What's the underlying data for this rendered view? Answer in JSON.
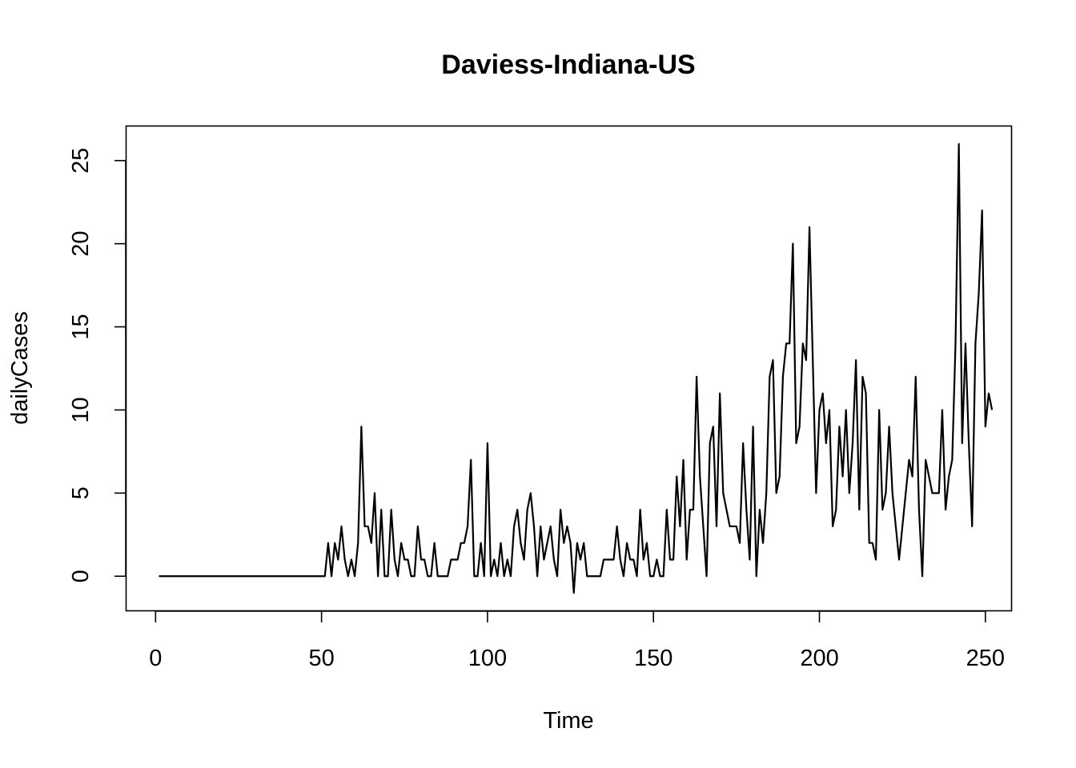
{
  "chart_data": {
    "type": "line",
    "title": "Daviess-Indiana-US",
    "xlabel": "Time",
    "ylabel": "dailyCases",
    "xlim": [
      1,
      248
    ],
    "ylim": [
      -1,
      26
    ],
    "x_ticks": [
      0,
      50,
      100,
      150,
      200,
      250
    ],
    "y_ticks": [
      0,
      5,
      10,
      15,
      20,
      25
    ],
    "grid": false,
    "legend": "none",
    "line_color": "#000000",
    "x_start": 1,
    "series": [
      {
        "values": [
          0,
          0,
          0,
          0,
          0,
          0,
          0,
          0,
          0,
          0,
          0,
          0,
          0,
          0,
          0,
          0,
          0,
          0,
          0,
          0,
          0,
          0,
          0,
          0,
          0,
          0,
          0,
          0,
          0,
          0,
          0,
          0,
          0,
          0,
          0,
          0,
          0,
          0,
          0,
          0,
          0,
          0,
          0,
          0,
          0,
          0,
          0,
          0,
          0,
          0,
          0,
          2,
          0,
          2,
          1,
          3,
          1,
          0,
          1,
          0,
          2,
          9,
          3,
          3,
          2,
          5,
          0,
          4,
          0,
          0,
          4,
          1,
          0,
          2,
          1,
          1,
          0,
          0,
          3,
          1,
          1,
          0,
          0,
          2,
          0,
          0,
          0,
          0,
          1,
          1,
          1,
          2,
          2,
          3,
          7,
          0,
          0,
          2,
          0,
          8,
          0,
          1,
          0,
          2,
          0,
          1,
          0,
          3,
          4,
          2,
          1,
          4,
          5,
          3,
          0,
          3,
          1,
          2,
          3,
          1,
          0,
          4,
          2,
          3,
          2,
          -1,
          2,
          1,
          2,
          0,
          0,
          0,
          0,
          0,
          1,
          1,
          1,
          1,
          3,
          1,
          0,
          2,
          1,
          1,
          0,
          4,
          1,
          2,
          0,
          0,
          1,
          0,
          0,
          4,
          1,
          1,
          6,
          3,
          7,
          1,
          4,
          4,
          12,
          6,
          3,
          0,
          8,
          9,
          3,
          11,
          5,
          4,
          3,
          3,
          3,
          2,
          8,
          4,
          1,
          9,
          0,
          4,
          2,
          5,
          12,
          13,
          5,
          6,
          12,
          14,
          14,
          20,
          8,
          9,
          14,
          13,
          21,
          13,
          5,
          10,
          11,
          8,
          10,
          3,
          4,
          9,
          6,
          10,
          5,
          8,
          13,
          4,
          12,
          11,
          2,
          2,
          1,
          10,
          4,
          5,
          9,
          5,
          3,
          1,
          3,
          5,
          7,
          6,
          12,
          4,
          0,
          7,
          6,
          5,
          5,
          5,
          10,
          4,
          6,
          7,
          14,
          26,
          8,
          14,
          8,
          3,
          14,
          17,
          22,
          9,
          11,
          10
        ]
      }
    ]
  }
}
